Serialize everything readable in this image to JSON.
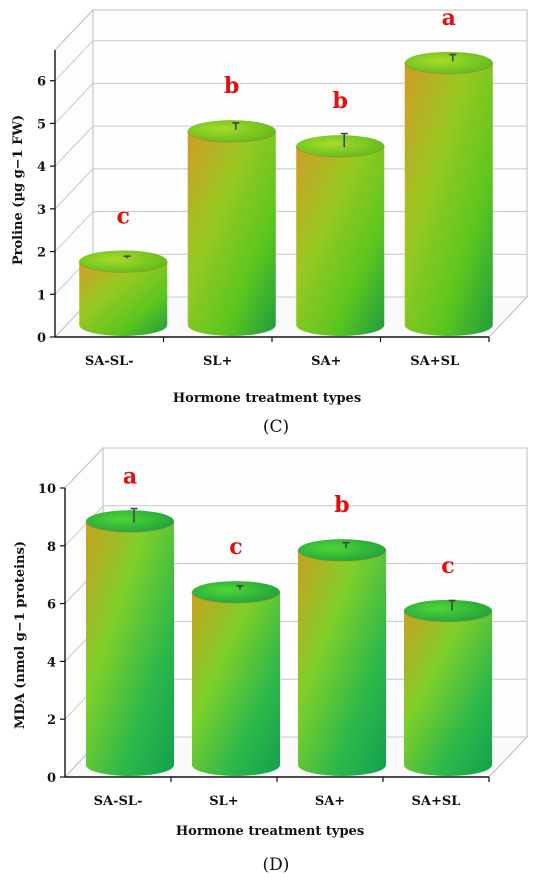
{
  "chart_data": [
    {
      "type": "bar",
      "panel_label": "(C)",
      "categories": [
        "SA-SL-",
        "SL+",
        "SA+",
        "SA+SL"
      ],
      "values": [
        1.6,
        4.65,
        4.3,
        6.25
      ],
      "errors": [
        0.03,
        0.1,
        0.2,
        0.1
      ],
      "significance": [
        "c",
        "b",
        "b",
        "a"
      ],
      "xlabel": "Hormone treatment types",
      "ylabel": "Proline (µg g−1 FW)",
      "ylim": [
        0,
        7
      ],
      "yticks": [
        0,
        1,
        2,
        3,
        4,
        5,
        6
      ],
      "grid": true,
      "colors": {
        "top": "#8fcf1d",
        "body_light": "#b0d420",
        "body_dark": "#1e9c40",
        "orange": "#d29a26"
      }
    },
    {
      "type": "bar",
      "panel_label": "(D)",
      "categories": [
        "SA-SL-",
        "SL+",
        "SA+",
        "SA+SL"
      ],
      "values": [
        8.6,
        6.15,
        7.6,
        5.5
      ],
      "errors": [
        0.3,
        0.08,
        0.12,
        0.22
      ],
      "significance": [
        "a",
        "c",
        "b",
        "c"
      ],
      "xlabel": "Hormone treatment types",
      "ylabel": "MDA (nmol g−1 proteins)",
      "ylim": [
        0,
        11
      ],
      "yticks": [
        0,
        2,
        4,
        6,
        8,
        10
      ],
      "grid": true,
      "colors": {
        "top": "#3ecb2c",
        "body_light": "#9fd626",
        "body_dark": "#12a04e",
        "orange": "#c9a020"
      }
    }
  ]
}
